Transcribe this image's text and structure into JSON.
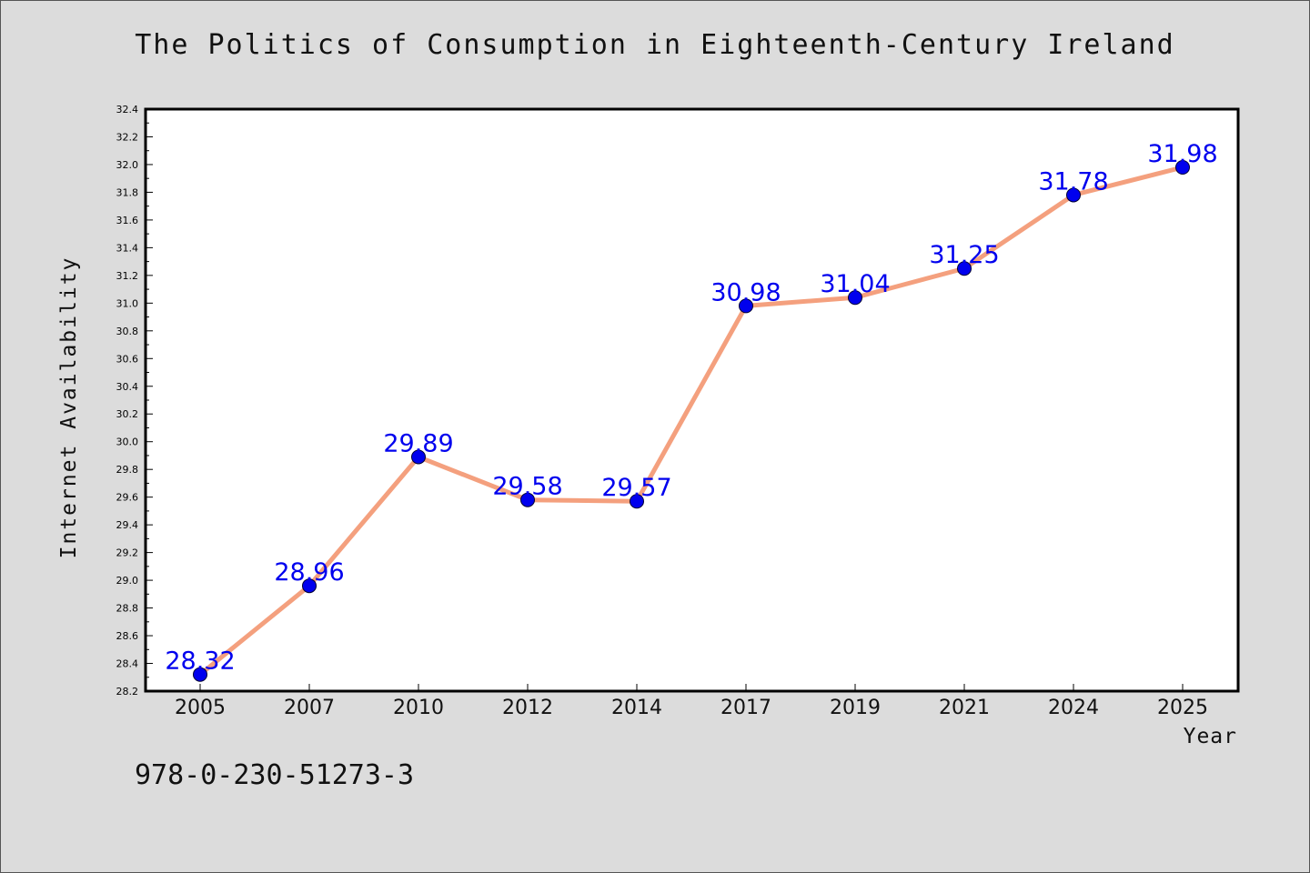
{
  "chart_data": {
    "type": "line",
    "title": "The Politics of Consumption in Eighteenth-Century Ireland",
    "xlabel": "Year",
    "ylabel": "Internet Availability",
    "categories": [
      "2005",
      "2007",
      "2010",
      "2012",
      "2014",
      "2017",
      "2019",
      "2021",
      "2024",
      "2025"
    ],
    "series": [
      {
        "values": [
          28.32,
          28.96,
          29.89,
          29.58,
          29.57,
          30.98,
          31.04,
          31.25,
          31.78,
          31.98
        ],
        "line_color": "#f4a07e",
        "marker_color": "#0000ee"
      }
    ],
    "ylim": [
      28.2,
      32.4
    ],
    "yticks": [
      "28.2",
      "28.4",
      "28.6",
      "28.8",
      "29.0",
      "29.2",
      "29.4",
      "29.6",
      "29.8",
      "30.0",
      "30.2",
      "30.4",
      "30.6",
      "30.8",
      "31.0",
      "31.2",
      "31.4",
      "31.6",
      "31.8",
      "32.0",
      "32.2",
      "32.4"
    ],
    "data_labels": [
      "28.32",
      "28.96",
      "29.89",
      "29.58",
      "29.57",
      "30.98",
      "31.04",
      "31.25",
      "31.78",
      "31.98"
    ],
    "label_color": "#0000ee",
    "grid": false,
    "legend": "none"
  },
  "footer": {
    "code": "978-0-230-51273-3"
  }
}
